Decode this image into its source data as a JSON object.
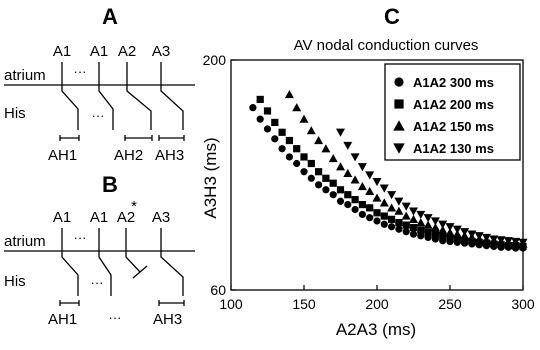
{
  "panels": {
    "a": {
      "letter": "A",
      "stim_labels": [
        "A1",
        "A1",
        "A2",
        "A3"
      ],
      "ellipses": [
        "···",
        "···"
      ],
      "row_labels": [
        "atrium",
        "His"
      ],
      "interval_labels": [
        "AH1",
        "AH2",
        "AH3"
      ]
    },
    "b": {
      "letter": "B",
      "stim_labels": [
        "A1",
        "A1",
        "A2",
        "A3"
      ],
      "star": "*",
      "ellipses": [
        "···",
        "···",
        "···"
      ],
      "row_labels": [
        "atrium",
        "His"
      ],
      "interval_labels": [
        "AH1",
        "AH3"
      ]
    },
    "c": {
      "letter": "C"
    }
  },
  "chart_data": {
    "type": "scatter",
    "title": "AV nodal conduction curves",
    "xlabel": "A2A3 (ms)",
    "ylabel": "A3H3 (ms)",
    "xlim": [
      100,
      300
    ],
    "ylim": [
      60,
      200
    ],
    "xticks": [
      100,
      150,
      200,
      250,
      300
    ],
    "yticks": [
      60,
      200
    ],
    "grid": false,
    "legend_position": "top-right",
    "series": [
      {
        "name": "A1A2 300 ms",
        "marker": "circle",
        "x": [
          115,
          120,
          125,
          130,
          135,
          140,
          145,
          150,
          155,
          160,
          165,
          170,
          175,
          180,
          185,
          190,
          195,
          200,
          205,
          210,
          215,
          220,
          225,
          230,
          235,
          240,
          245,
          250,
          255,
          260,
          265,
          270,
          275,
          280,
          285,
          290,
          295,
          300
        ],
        "y": [
          171,
          164,
          158,
          152,
          146,
          141,
          137,
          132,
          128,
          124,
          121,
          118,
          114,
          112,
          109,
          106,
          104,
          102,
          100,
          98.5,
          97,
          95.5,
          94,
          93,
          92,
          91,
          90,
          89.5,
          89,
          88.5,
          88,
          87.5,
          87,
          86.5,
          86,
          86,
          85.5,
          85.5
        ]
      },
      {
        "name": "A1A2 200 ms",
        "marker": "square",
        "x": [
          120,
          125,
          130,
          135,
          140,
          145,
          150,
          155,
          160,
          165,
          170,
          175,
          180,
          185,
          190,
          195,
          200,
          205,
          210,
          215,
          220,
          225,
          230,
          235,
          240,
          245,
          250,
          255,
          260,
          265,
          270,
          275,
          280,
          285,
          290,
          295,
          300
        ],
        "y": [
          176,
          169,
          162,
          156,
          151,
          146,
          141,
          137,
          132,
          128,
          125,
          121,
          118,
          115,
          112,
          110,
          107,
          105,
          103,
          101,
          99.5,
          98,
          96.5,
          95,
          94,
          93,
          92,
          91,
          90,
          89.5,
          89,
          88.5,
          88,
          87.5,
          87,
          87,
          86.5
        ]
      },
      {
        "name": "A1A2 150 ms",
        "marker": "triangle-up",
        "x": [
          140,
          145,
          150,
          155,
          160,
          165,
          170,
          175,
          180,
          185,
          190,
          195,
          200,
          205,
          210,
          215,
          220,
          225,
          230,
          235,
          240,
          245,
          250,
          255,
          260,
          265,
          270,
          275,
          280,
          285,
          290,
          295,
          300
        ],
        "y": [
          179,
          171,
          164,
          157,
          151,
          146,
          140,
          135,
          131,
          127,
          123,
          120,
          116,
          113,
          110,
          108,
          105,
          103,
          101,
          99.5,
          98,
          96.5,
          95,
          94,
          93,
          92,
          91,
          90.5,
          90,
          89.5,
          89,
          88.5,
          88
        ]
      },
      {
        "name": "A1A2 130 ms",
        "marker": "triangle-down",
        "x": [
          175,
          180,
          185,
          190,
          195,
          200,
          205,
          210,
          215,
          220,
          225,
          230,
          235,
          240,
          245,
          250,
          255,
          260,
          265,
          270,
          275,
          280,
          285,
          290,
          295,
          300
        ],
        "y": [
          156,
          148,
          141,
          135,
          130,
          126,
          122,
          118,
          114,
          111,
          108,
          106,
          104,
          102,
          100,
          98.5,
          97,
          95.5,
          94,
          93,
          92,
          91,
          90.5,
          90,
          89.5,
          89
        ]
      }
    ]
  }
}
